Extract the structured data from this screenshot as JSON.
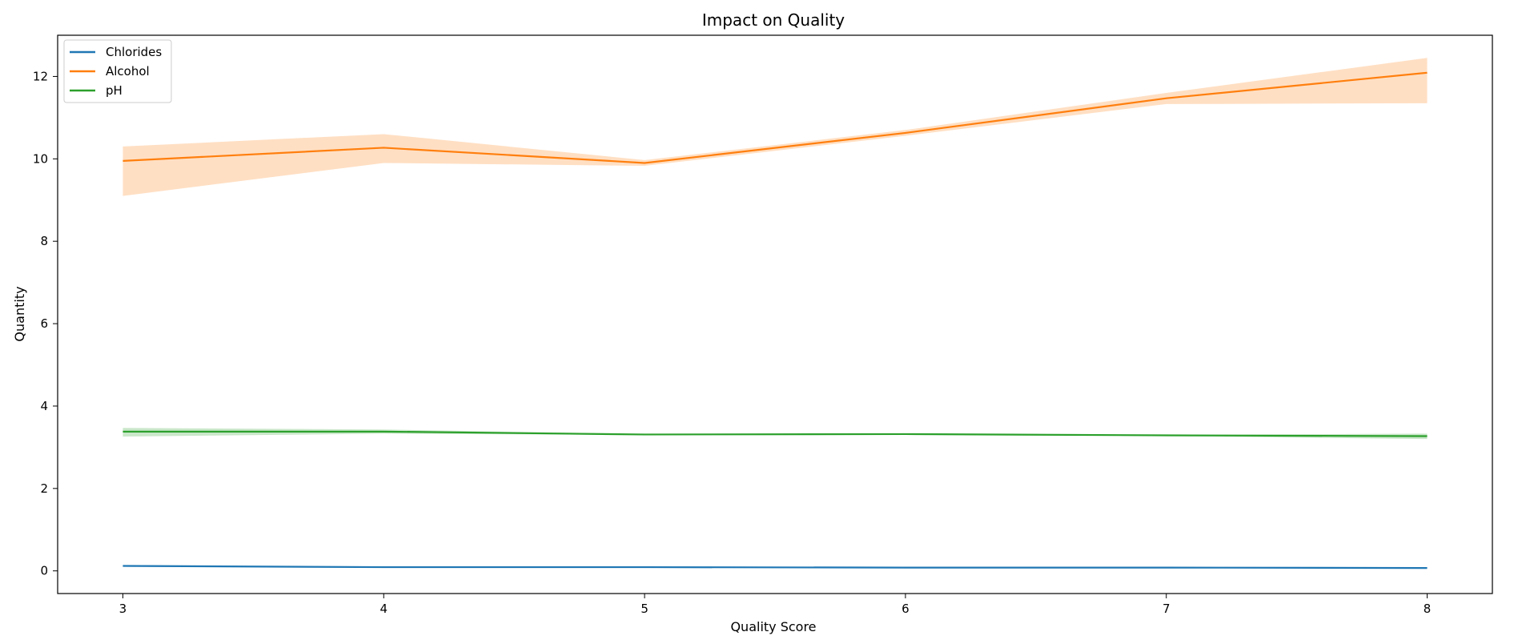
{
  "chart_data": {
    "type": "line",
    "title": "Impact on Quality",
    "xlabel": "Quality Score",
    "ylabel": "Quantity",
    "x": [
      3,
      4,
      5,
      6,
      7,
      8
    ],
    "xlim": [
      2.75,
      8.25
    ],
    "ylim": [
      -0.55,
      13.0
    ],
    "x_ticks": [
      3,
      4,
      5,
      6,
      7,
      8
    ],
    "y_ticks": [
      0,
      2,
      4,
      6,
      8,
      10,
      12
    ],
    "grid": false,
    "legend_position": "top-left",
    "series": [
      {
        "name": "Chlorides",
        "color": "#1f77b4",
        "values": [
          0.12,
          0.09,
          0.09,
          0.08,
          0.08,
          0.07
        ],
        "ci_lower": [
          0.1,
          0.08,
          0.09,
          0.08,
          0.08,
          0.07
        ],
        "ci_upper": [
          0.14,
          0.1,
          0.09,
          0.09,
          0.08,
          0.07
        ]
      },
      {
        "name": "Alcohol",
        "color": "#ff7f0e",
        "values": [
          9.95,
          10.27,
          9.9,
          10.63,
          11.47,
          12.09
        ],
        "ci_lower": [
          9.1,
          9.9,
          9.83,
          10.56,
          11.33,
          11.35
        ],
        "ci_upper": [
          10.3,
          10.6,
          9.97,
          10.7,
          11.6,
          12.45
        ]
      },
      {
        "name": "pH",
        "color": "#2ca02c",
        "values": [
          3.38,
          3.38,
          3.31,
          3.32,
          3.29,
          3.27
        ],
        "ci_lower": [
          3.26,
          3.33,
          3.3,
          3.31,
          3.27,
          3.2
        ],
        "ci_upper": [
          3.47,
          3.43,
          3.32,
          3.33,
          3.3,
          3.33
        ]
      }
    ]
  }
}
